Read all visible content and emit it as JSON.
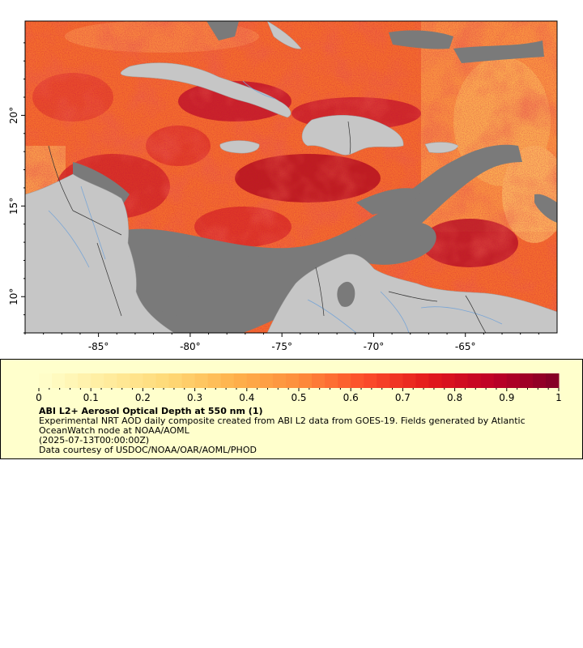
{
  "map": {
    "x_ticks": [
      {
        "lon": -85,
        "label": "-85°"
      },
      {
        "lon": -80,
        "label": "-80°"
      },
      {
        "lon": -75,
        "label": "-75°"
      },
      {
        "lon": -70,
        "label": "-70°"
      },
      {
        "lon": -65,
        "label": "-65°"
      }
    ],
    "y_ticks": [
      {
        "lat": 20,
        "label": "20°"
      },
      {
        "lat": 15,
        "label": "15°"
      },
      {
        "lat": 10,
        "label": "10°"
      }
    ],
    "lon_range": [
      -89,
      -60
    ],
    "lat_range": [
      8.0,
      25.2
    ],
    "colors": {
      "land": "#c6c6c6",
      "nodata": "#7a7a7a",
      "rivers": "#7aa6d6",
      "borders": "#333333"
    }
  },
  "legend": {
    "ticks": [
      "0",
      "0.1",
      "0.2",
      "0.3",
      "0.4",
      "0.5",
      "0.6",
      "0.7",
      "0.8",
      "0.9",
      "1"
    ],
    "range": [
      0,
      1
    ],
    "title": "ABI L2+ Aerosol Optical Depth at 550 nm (1)",
    "description": "Experimental NRT AOD daily composite created from ABI L2 data from GOES-19. Fields generated by Atlantic OceanWatch node at NOAA/AOML",
    "date": "(2025-07-13T00:00:00Z)",
    "credit": "Data courtesy of USDOC/NOAA/OAR/AOML/PHOD",
    "colormap": [
      "#ffffcc",
      "#ffeda0",
      "#fed976",
      "#feb24c",
      "#fd8d3c",
      "#fc4e2a",
      "#e31a1c",
      "#bd0026",
      "#800026"
    ]
  }
}
